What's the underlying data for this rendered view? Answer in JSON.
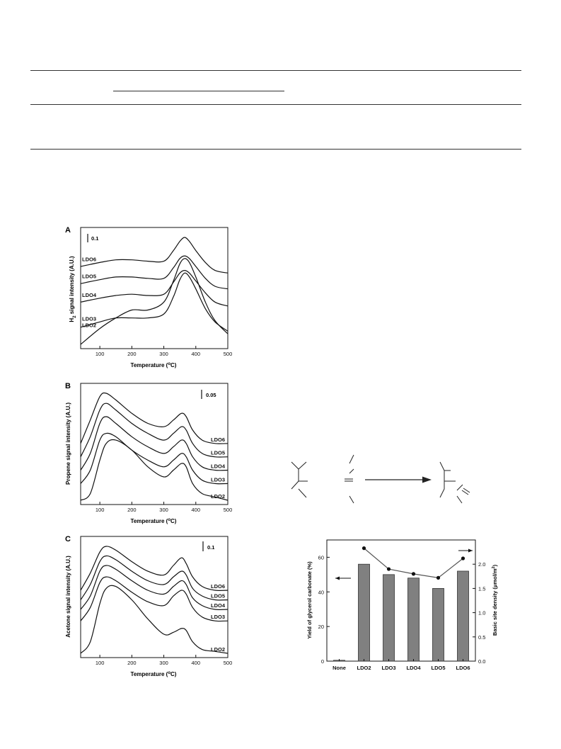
{
  "chart_data": [
    {
      "type": "line",
      "panel_label": "A",
      "xlabel": "Temperature (°C)",
      "ylabel": "H2 signal intensity (A.U.)",
      "xlim": [
        40,
        500
      ],
      "xticks": [
        100,
        200,
        300,
        400,
        500
      ],
      "scale_bar": "0.1",
      "x": [
        40,
        100,
        150,
        200,
        250,
        300,
        330,
        350,
        365,
        380,
        400,
        430,
        460,
        500
      ],
      "series": [
        {
          "name": "LDO2",
          "values": [
            -0.04,
            0.08,
            0.16,
            0.22,
            0.22,
            0.28,
            0.44,
            0.57,
            0.61,
            0.58,
            0.47,
            0.28,
            0.14,
            0.04
          ]
        },
        {
          "name": "LDO3",
          "values": [
            0.09,
            0.13,
            0.16,
            0.16,
            0.16,
            0.19,
            0.32,
            0.45,
            0.5,
            0.47,
            0.38,
            0.23,
            0.13,
            0.06
          ]
        },
        {
          "name": "LDO4",
          "values": [
            0.28,
            0.31,
            0.33,
            0.34,
            0.33,
            0.34,
            0.43,
            0.5,
            0.52,
            0.5,
            0.44,
            0.35,
            0.28,
            0.25
          ]
        },
        {
          "name": "LDO5",
          "values": [
            0.42,
            0.45,
            0.47,
            0.47,
            0.46,
            0.46,
            0.54,
            0.61,
            0.63,
            0.61,
            0.55,
            0.46,
            0.4,
            0.38
          ]
        },
        {
          "name": "LDO6",
          "values": [
            0.55,
            0.58,
            0.6,
            0.6,
            0.59,
            0.59,
            0.67,
            0.74,
            0.77,
            0.74,
            0.67,
            0.58,
            0.52,
            0.5
          ]
        }
      ]
    },
    {
      "type": "line",
      "panel_label": "B",
      "xlabel": "Temperature (°C)",
      "ylabel": "Propene signal intensity (A.U.)",
      "xlim": [
        40,
        500
      ],
      "xticks": [
        100,
        200,
        300,
        400,
        500
      ],
      "scale_bar": "0.05",
      "x": [
        40,
        70,
        100,
        120,
        150,
        200,
        250,
        300,
        330,
        355,
        370,
        390,
        420,
        460,
        500
      ],
      "series": [
        {
          "name": "LDO2",
          "values": [
            0.0,
            0.02,
            0.12,
            0.17,
            0.18,
            0.15,
            0.1,
            0.07,
            0.09,
            0.11,
            0.1,
            0.05,
            0.02,
            0.01,
            0.0
          ]
        },
        {
          "name": "LDO3",
          "values": [
            0.05,
            0.09,
            0.18,
            0.2,
            0.19,
            0.15,
            0.12,
            0.1,
            0.12,
            0.14,
            0.13,
            0.09,
            0.06,
            0.05,
            0.05
          ]
        },
        {
          "name": "LDO4",
          "values": [
            0.09,
            0.14,
            0.23,
            0.25,
            0.23,
            0.19,
            0.16,
            0.14,
            0.16,
            0.18,
            0.17,
            0.13,
            0.1,
            0.09,
            0.09
          ]
        },
        {
          "name": "LDO5",
          "values": [
            0.13,
            0.19,
            0.27,
            0.29,
            0.27,
            0.23,
            0.2,
            0.18,
            0.2,
            0.22,
            0.21,
            0.17,
            0.14,
            0.13,
            0.13
          ]
        },
        {
          "name": "LDO6",
          "values": [
            0.17,
            0.24,
            0.31,
            0.32,
            0.3,
            0.26,
            0.23,
            0.22,
            0.24,
            0.26,
            0.25,
            0.21,
            0.18,
            0.17,
            0.17
          ]
        }
      ]
    },
    {
      "type": "line",
      "panel_label": "C",
      "xlabel": "Temperature (°C)",
      "ylabel": "Acetone signal intensity (A.U.)",
      "xlim": [
        40,
        500
      ],
      "xticks": [
        100,
        200,
        300,
        400,
        500
      ],
      "scale_bar": "0.1",
      "x": [
        40,
        70,
        100,
        120,
        150,
        200,
        250,
        300,
        330,
        355,
        370,
        390,
        420,
        460,
        500
      ],
      "series": [
        {
          "name": "LDO2",
          "values": [
            0.0,
            0.06,
            0.26,
            0.34,
            0.35,
            0.28,
            0.18,
            0.1,
            0.11,
            0.13,
            0.12,
            0.06,
            0.02,
            0.01,
            0.0
          ]
        },
        {
          "name": "LDO3",
          "values": [
            0.17,
            0.24,
            0.37,
            0.4,
            0.38,
            0.32,
            0.27,
            0.25,
            0.3,
            0.33,
            0.31,
            0.24,
            0.19,
            0.17,
            0.17
          ]
        },
        {
          "name": "LDO4",
          "values": [
            0.23,
            0.3,
            0.43,
            0.46,
            0.44,
            0.38,
            0.33,
            0.31,
            0.35,
            0.38,
            0.36,
            0.29,
            0.25,
            0.23,
            0.23
          ]
        },
        {
          "name": "LDO5",
          "values": [
            0.28,
            0.36,
            0.48,
            0.51,
            0.49,
            0.43,
            0.38,
            0.36,
            0.4,
            0.43,
            0.41,
            0.34,
            0.3,
            0.28,
            0.28
          ]
        },
        {
          "name": "LDO6",
          "values": [
            0.33,
            0.42,
            0.53,
            0.56,
            0.54,
            0.48,
            0.43,
            0.41,
            0.46,
            0.5,
            0.47,
            0.4,
            0.35,
            0.33,
            0.33
          ]
        }
      ]
    },
    {
      "type": "bar",
      "ylabel": "Yield of glycerol carbonate (%)",
      "y2label": "Basic site density (μmol/m²)",
      "categories": [
        "None",
        "LDO2",
        "LDO3",
        "LDO4",
        "LDO5",
        "LDO6"
      ],
      "ylim": [
        0,
        70
      ],
      "yticks": [
        0,
        20,
        40,
        60
      ],
      "y2lim": [
        0,
        2.5
      ],
      "y2ticks": [
        "0.0",
        "0.5",
        "1.0",
        "1.5",
        "2.0"
      ],
      "series": [
        {
          "values": [
            0.5,
            56,
            50,
            48,
            42,
            52
          ]
        },
        {
          "values": [
            null,
            2.33,
            1.9,
            1.8,
            1.72,
            2.12
          ]
        }
      ]
    }
  ]
}
